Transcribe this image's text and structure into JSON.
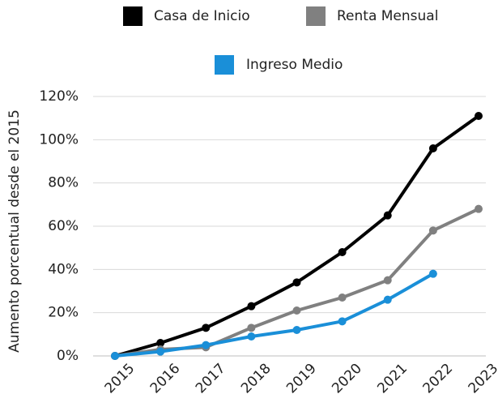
{
  "chart_data": {
    "type": "line",
    "y_label": "Aumento porcentual desde el 2015",
    "categories": [
      "2015",
      "2016",
      "2017",
      "2018",
      "2019",
      "2020",
      "2021",
      "2022",
      "2023"
    ],
    "series": [
      {
        "name": "Casa de Inicio",
        "color": "#000000",
        "values": [
          0,
          6,
          13,
          23,
          34,
          48,
          65,
          96,
          111
        ]
      },
      {
        "name": "Renta Mensual",
        "color": "#808080",
        "values": [
          0,
          3,
          4,
          13,
          21,
          27,
          35,
          58,
          68
        ]
      },
      {
        "name": "Ingreso Medio",
        "color": "#1a8fd8",
        "values": [
          0,
          2,
          5,
          9,
          12,
          16,
          26,
          38,
          null
        ]
      }
    ],
    "ylim": [
      0,
      120
    ],
    "yticks": [
      {
        "value": 0,
        "label": "0%"
      },
      {
        "value": 20,
        "label": "20%"
      },
      {
        "value": 40,
        "label": "40%"
      },
      {
        "value": 60,
        "label": "60%"
      },
      {
        "value": 80,
        "label": "80%"
      },
      {
        "value": 100,
        "label": "100%"
      },
      {
        "value": 120,
        "label": "120%"
      }
    ],
    "grid": true,
    "legend": "top"
  }
}
